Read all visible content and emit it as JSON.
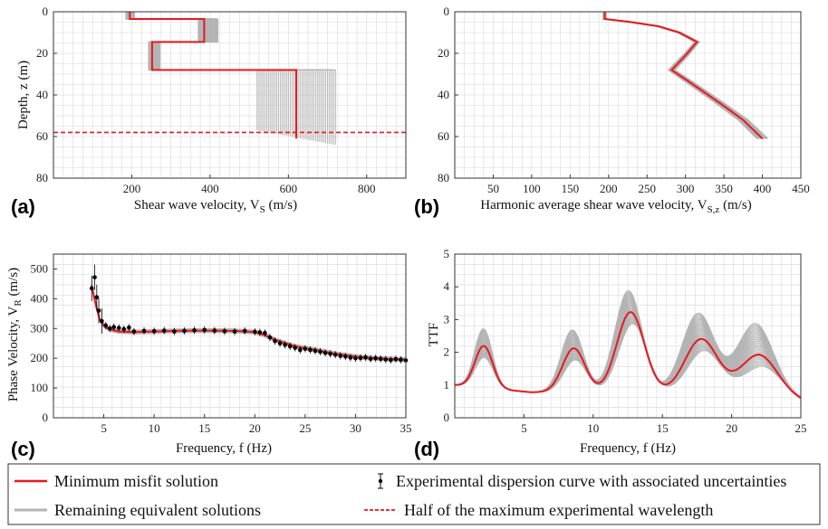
{
  "colors": {
    "min_misfit": "#e8191f",
    "equivalent": "#b4b4b4",
    "experimental": "#000000",
    "grid": "#d8d8d8"
  },
  "legend": {
    "min_misfit": "Minimum misfit solution",
    "equivalent": "Remaining equivalent solutions",
    "experimental": "Experimental dispersion curve with associated uncertainties",
    "half_wavelength": "Half of the maximum experimental wavelength"
  },
  "chart_data": [
    {
      "id": "a",
      "panel_label": "(a)",
      "type": "line",
      "xlabel": "Shear wave velocity, V",
      "xlabel_sub": "S",
      "xlabel_tail": " (m/s)",
      "ylabel": "Depth, z (m)",
      "xlim": [
        0,
        900
      ],
      "ylim": [
        0,
        80
      ],
      "y_inverted": true,
      "xticks": [
        200,
        400,
        600,
        800
      ],
      "yticks": [
        0,
        20,
        40,
        60,
        80
      ],
      "grid": true,
      "series": [
        {
          "name": "Minimum misfit solution",
          "x": [
            195,
            195,
            385,
            385,
            252,
            252,
            620,
            620
          ],
          "y": [
            0,
            3.5,
            3.5,
            14.5,
            14.5,
            28,
            28,
            61
          ]
        }
      ],
      "band_min": {
        "x": [
          185,
          185,
          370,
          370,
          243,
          243,
          520,
          520
        ],
        "y": [
          0,
          3.5,
          3.5,
          14.5,
          14.5,
          28,
          28,
          57
        ]
      },
      "band_max": {
        "x": [
          207,
          207,
          420,
          420,
          272,
          272,
          720,
          720
        ],
        "y": [
          0,
          3.5,
          3.5,
          14.5,
          14.5,
          28,
          28,
          64
        ]
      },
      "half_wavelength_depth": 58
    },
    {
      "id": "b",
      "panel_label": "(b)",
      "type": "line",
      "xlabel": "Harmonic average shear wave velocity, V",
      "xlabel_sub": "S,z",
      "xlabel_tail": " (m/s)",
      "ylabel": "",
      "xlim": [
        0,
        450
      ],
      "ylim": [
        0,
        80
      ],
      "y_inverted": true,
      "xticks": [
        50,
        100,
        150,
        200,
        250,
        300,
        350,
        400,
        450
      ],
      "yticks": [
        0,
        20,
        40,
        60,
        80
      ],
      "grid": true,
      "series": [
        {
          "name": "Minimum misfit solution",
          "x": [
            195,
            195,
            230,
            265,
            292,
            315,
            300,
            282,
            310,
            345,
            375,
            400
          ],
          "y": [
            0,
            3.5,
            5,
            7,
            10,
            14.5,
            21,
            28,
            35,
            44,
            52,
            61
          ]
        }
      ],
      "band_width": 14
    },
    {
      "id": "c",
      "panel_label": "(c)",
      "type": "scatter",
      "xlabel": "Frequency, f (Hz)",
      "ylabel": "Phase Velocity, V",
      "ylabel_sub": "R",
      "ylabel_tail": " (m/s)",
      "xlim": [
        0,
        35
      ],
      "ylim": [
        0,
        550
      ],
      "xticks": [
        5,
        10,
        15,
        20,
        25,
        30,
        35
      ],
      "yticks": [
        0,
        100,
        200,
        300,
        400,
        500
      ],
      "grid": true,
      "series": [
        {
          "name": "Minimum misfit solution",
          "x": [
            3.8,
            4.2,
            4.6,
            5.0,
            5.5,
            6.5,
            8,
            10,
            12,
            15,
            18,
            20,
            21,
            22,
            24,
            26,
            28,
            30,
            32,
            33,
            35
          ],
          "y": [
            445,
            380,
            330,
            310,
            298,
            290,
            288,
            290,
            292,
            293,
            292,
            288,
            278,
            262,
            240,
            228,
            215,
            205,
            200,
            198,
            195
          ]
        },
        {
          "name": "Experimental dispersion curve",
          "x": [
            3.8,
            4.1,
            4.3,
            4.5,
            4.8,
            5.2,
            5.6,
            6.0,
            6.5,
            7.0,
            7.5,
            8,
            9,
            10,
            11,
            12,
            13,
            14,
            15,
            16,
            17,
            18,
            19,
            20,
            20.5,
            21,
            21.5,
            22,
            22.5,
            23,
            23.5,
            24,
            24.5,
            25,
            25.5,
            26,
            26.5,
            27,
            27.5,
            28,
            28.5,
            29,
            29.5,
            30,
            30.5,
            31,
            31.5,
            32,
            32.5,
            33,
            33.5,
            34,
            34.5,
            35
          ],
          "y": [
            435,
            472,
            405,
            360,
            325,
            310,
            300,
            305,
            302,
            298,
            303,
            290,
            292,
            291,
            293,
            290,
            292,
            294,
            295,
            293,
            291,
            290,
            292,
            289,
            287,
            285,
            270,
            258,
            250,
            245,
            240,
            235,
            228,
            232,
            228,
            225,
            222,
            218,
            215,
            212,
            208,
            206,
            202,
            200,
            201,
            203,
            198,
            200,
            198,
            196,
            194,
            197,
            195,
            193
          ]
        }
      ]
    },
    {
      "id": "d",
      "panel_label": "(d)",
      "type": "line",
      "xlabel": "Frequency, f (Hz)",
      "ylabel": "TTF",
      "xlim": [
        0,
        25
      ],
      "ylim": [
        0,
        5
      ],
      "xticks": [
        5,
        10,
        15,
        20,
        25
      ],
      "yticks": [
        0,
        1,
        2,
        3,
        4,
        5
      ],
      "grid": true,
      "peaks_f": [
        2.1,
        8.6,
        12.7,
        17.8,
        22.0
      ],
      "peaks_amp": [
        2.18,
        2.24,
        3.35,
        2.52,
        2.05
      ],
      "band_peaks_amp": [
        2.7,
        2.8,
        4.0,
        3.3,
        3.0
      ]
    }
  ]
}
